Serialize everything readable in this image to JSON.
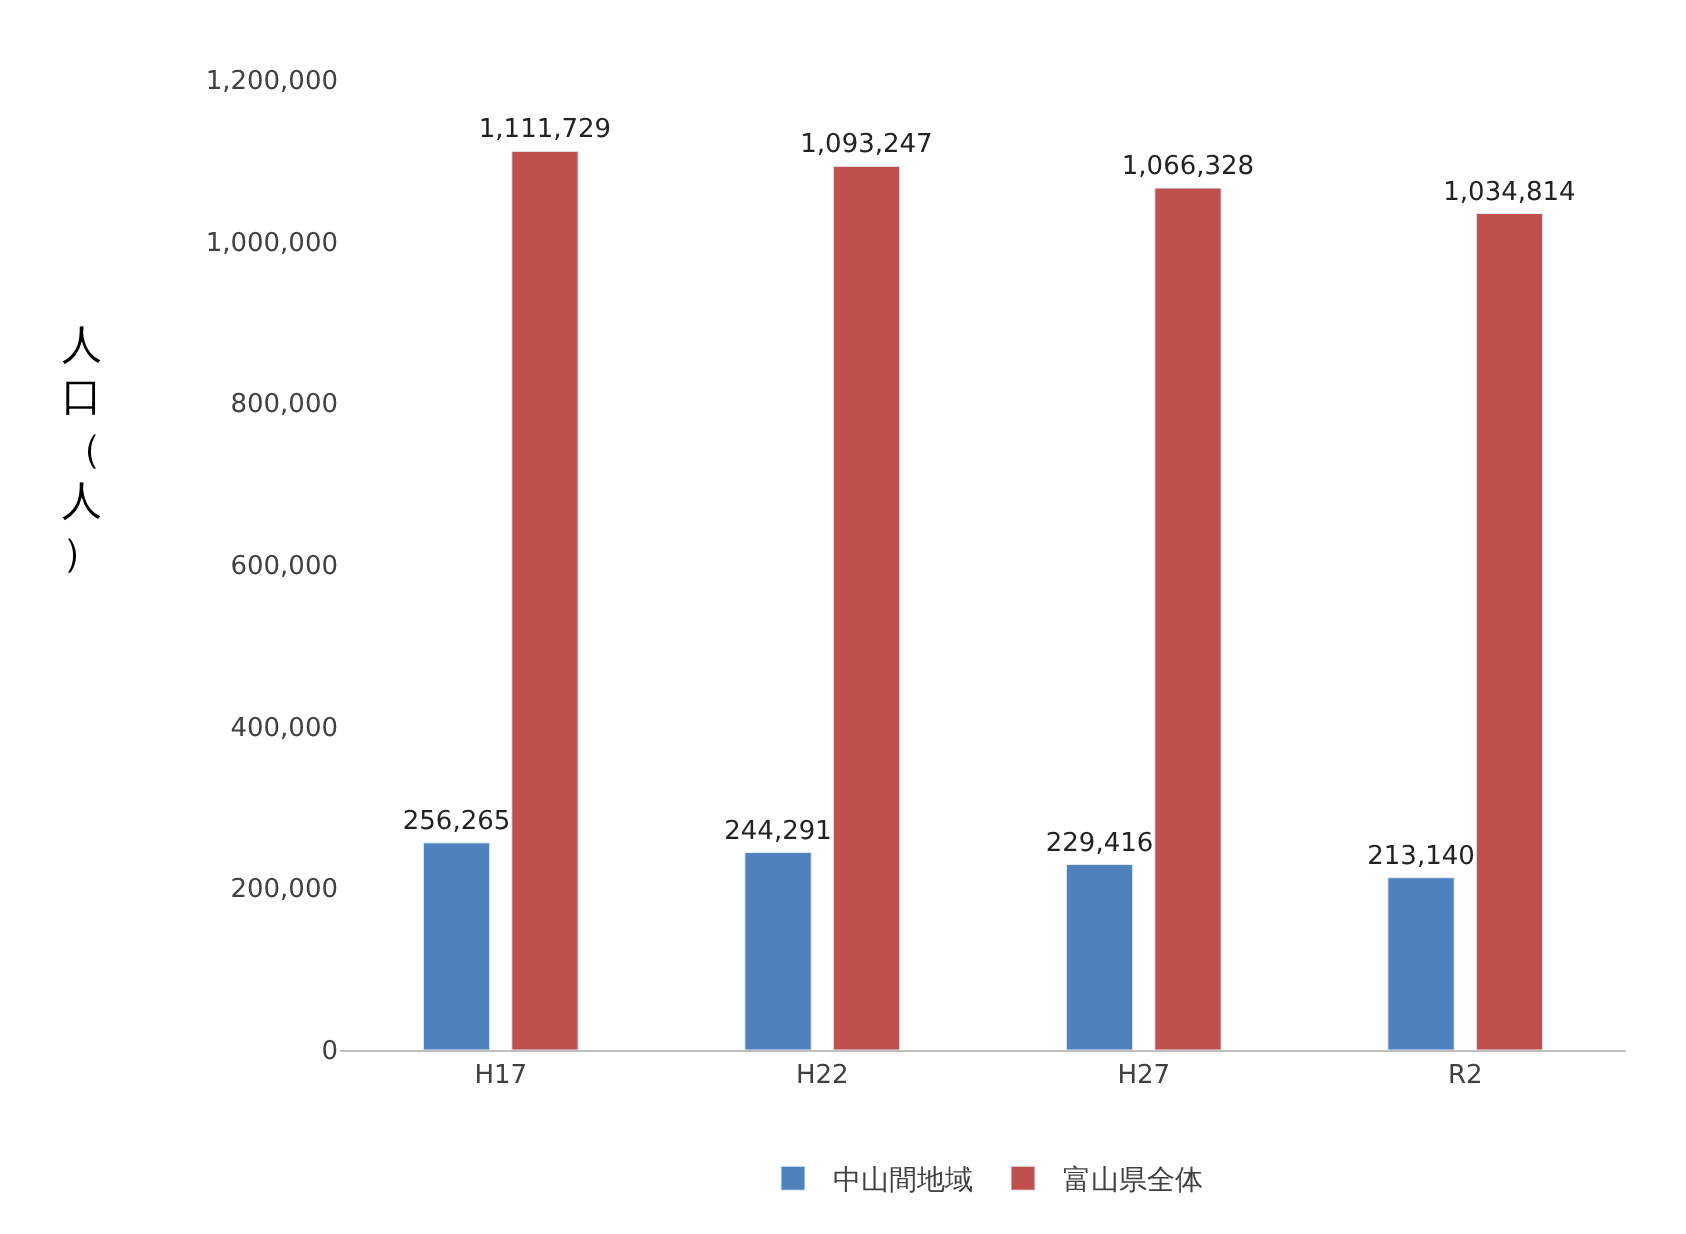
{
  "chart_data": {
    "type": "bar",
    "ylabel": "人口（人）",
    "categories": [
      "H17",
      "H22",
      "H27",
      "R2"
    ],
    "series": [
      {
        "name": "中山間地域",
        "color": "#4f81bd",
        "values": [
          256265,
          244291,
          229416,
          213140
        ],
        "value_labels": [
          "256,265",
          "244,291",
          "229,416",
          "213,140"
        ]
      },
      {
        "name": "富山県全体",
        "color": "#c0504d",
        "values": [
          1111729,
          1093247,
          1066328,
          1034814
        ],
        "value_labels": [
          "1,111,729",
          "1,093,247",
          "1,066,328",
          "1,034,814"
        ]
      }
    ],
    "ylim": [
      0,
      1200000
    ],
    "yticks": [
      {
        "value": 0,
        "label": "0"
      },
      {
        "value": 200000,
        "label": "200,000"
      },
      {
        "value": 400000,
        "label": "400,000"
      },
      {
        "value": 600000,
        "label": "600,000"
      },
      {
        "value": 800000,
        "label": "800,000"
      },
      {
        "value": 1000000,
        "label": "1,000,000"
      },
      {
        "value": 1200000,
        "label": "1,200,000"
      }
    ],
    "legend": "bottom"
  }
}
